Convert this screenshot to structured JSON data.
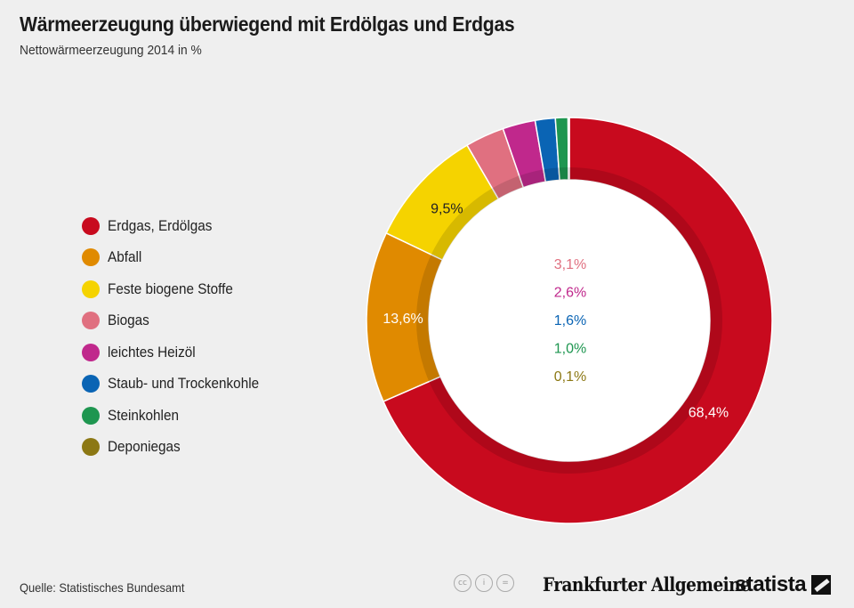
{
  "header": {
    "title": "Wärmeerzeugung überwiegend mit Erdölgas und Erdgas",
    "subtitle": "Nettowärmeerzeugung 2014 in %"
  },
  "chart_data": {
    "type": "pie",
    "donut": true,
    "legend_position": "left",
    "series": [
      {
        "name": "Erdgas, Erdölgas",
        "value": 68.4,
        "label": "68,4%",
        "color": "#c80a1e"
      },
      {
        "name": "Abfall",
        "value": 13.6,
        "label": "13,6%",
        "color": "#e08a00"
      },
      {
        "name": "Feste biogene Stoffe",
        "value": 9.5,
        "label": "9,5%",
        "color": "#f5d300"
      },
      {
        "name": "Biogas",
        "value": 3.1,
        "label": "3,1%",
        "color": "#e07080"
      },
      {
        "name": "leichtes Heizöl",
        "value": 2.6,
        "label": "2,6%",
        "color": "#c0288c"
      },
      {
        "name": "Staub- und Trockenkohle",
        "value": 1.6,
        "label": "1,6%",
        "color": "#0a64b4"
      },
      {
        "name": "Steinkohlen",
        "value": 1.0,
        "label": "1,0%",
        "color": "#1e9650"
      },
      {
        "name": "Deponiegas",
        "value": 0.1,
        "label": "0,1%",
        "color": "#8c7814"
      }
    ]
  },
  "footer": {
    "source": "Quelle: Statistisches Bundesamt",
    "license_icons": [
      "cc-icon",
      "by-icon",
      "nd-icon"
    ],
    "license_glyphs": [
      "cc",
      "i",
      "="
    ],
    "publisher": "Frankfurter Allgemeine",
    "brand": "statista"
  }
}
